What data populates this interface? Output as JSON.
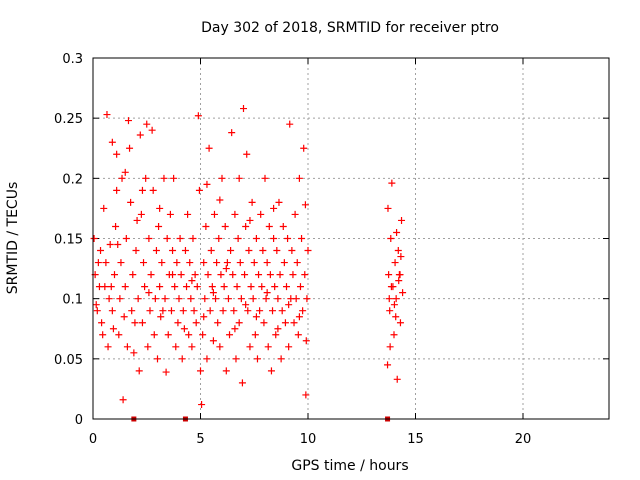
{
  "chart_data": {
    "type": "scatter",
    "title": "Day 302 of 2018, SRMTID for receiver ptro",
    "xlabel": "GPS time / hours",
    "ylabel": "SRMTID / TECUs",
    "xlim": [
      0,
      24
    ],
    "ylim": [
      0,
      0.3
    ],
    "x_ticks": [
      0,
      5,
      10,
      15,
      20
    ],
    "x_tick_labels": [
      "0",
      "5",
      "10",
      "15",
      "20"
    ],
    "y_ticks": [
      0,
      0.05,
      0.1,
      0.15,
      0.2,
      0.25,
      0.3
    ],
    "y_tick_labels": [
      "0",
      "0.05",
      "0.1",
      "0.15",
      "0.2",
      "0.25",
      "0.3"
    ],
    "grid": true,
    "marker": "plus",
    "color": "#ff0000",
    "gap_markers_x": [
      1.9,
      4.3,
      13.7
    ],
    "series": [
      {
        "values": [
          [
            0.05,
            0.15
          ],
          [
            0.1,
            0.12
          ],
          [
            0.2,
            0.09
          ],
          [
            0.3,
            0.11
          ],
          [
            0.35,
            0.14
          ],
          [
            0.4,
            0.08
          ],
          [
            0.5,
            0.175
          ],
          [
            0.55,
            0.11
          ],
          [
            0.6,
            0.13
          ],
          [
            0.7,
            0.06
          ],
          [
            0.75,
            0.1
          ],
          [
            0.8,
            0.145
          ],
          [
            0.9,
            0.09
          ],
          [
            0.95,
            0.075
          ],
          [
            1.0,
            0.12
          ],
          [
            0.65,
            0.253
          ],
          [
            0.9,
            0.23
          ],
          [
            1.1,
            0.22
          ],
          [
            1.05,
            0.16
          ],
          [
            1.1,
            0.19
          ],
          [
            1.2,
            0.07
          ],
          [
            1.25,
            0.1
          ],
          [
            1.3,
            0.13
          ],
          [
            1.35,
            0.2
          ],
          [
            1.4,
            0.016
          ],
          [
            1.45,
            0.085
          ],
          [
            1.5,
            0.11
          ],
          [
            1.55,
            0.15
          ],
          [
            1.6,
            0.06
          ],
          [
            1.65,
            0.248
          ],
          [
            1.7,
            0.225
          ],
          [
            1.75,
            0.18
          ],
          [
            1.8,
            0.09
          ],
          [
            1.85,
            0.12
          ],
          [
            1.9,
            0.055
          ],
          [
            2.0,
            0.14
          ],
          [
            2.1,
            0.1
          ],
          [
            2.15,
            0.04
          ],
          [
            2.2,
            0.236
          ],
          [
            2.25,
            0.17
          ],
          [
            2.3,
            0.08
          ],
          [
            2.35,
            0.13
          ],
          [
            2.4,
            0.11
          ],
          [
            2.45,
            0.2
          ],
          [
            2.5,
            0.245
          ],
          [
            2.55,
            0.06
          ],
          [
            2.6,
            0.15
          ],
          [
            2.65,
            0.09
          ],
          [
            2.7,
            0.12
          ],
          [
            2.75,
            0.24
          ],
          [
            2.8,
            0.19
          ],
          [
            2.85,
            0.07
          ],
          [
            2.9,
            0.1
          ],
          [
            2.95,
            0.14
          ],
          [
            3.0,
            0.05
          ],
          [
            3.05,
            0.16
          ],
          [
            3.1,
            0.11
          ],
          [
            3.15,
            0.085
          ],
          [
            3.2,
            0.13
          ],
          [
            3.3,
            0.2
          ],
          [
            3.35,
            0.1
          ],
          [
            3.4,
            0.039
          ],
          [
            3.45,
            0.15
          ],
          [
            3.5,
            0.07
          ],
          [
            3.55,
            0.12
          ],
          [
            3.6,
            0.17
          ],
          [
            3.65,
            0.09
          ],
          [
            3.7,
            0.14
          ],
          [
            3.75,
            0.2
          ],
          [
            3.8,
            0.11
          ],
          [
            3.85,
            0.06
          ],
          [
            3.9,
            0.13
          ],
          [
            3.95,
            0.08
          ],
          [
            4.0,
            0.1
          ],
          [
            4.05,
            0.15
          ],
          [
            4.1,
            0.12
          ],
          [
            4.15,
            0.05
          ],
          [
            4.2,
            0.09
          ],
          [
            4.3,
            0.14
          ],
          [
            4.35,
            0.11
          ],
          [
            4.4,
            0.17
          ],
          [
            4.45,
            0.07
          ],
          [
            4.5,
            0.13
          ],
          [
            4.55,
            0.1
          ],
          [
            4.6,
            0.06
          ],
          [
            4.65,
            0.15
          ],
          [
            4.7,
            0.09
          ],
          [
            4.75,
            0.12
          ],
          [
            4.8,
            0.08
          ],
          [
            4.85,
            0.11
          ],
          [
            4.9,
            0.252
          ],
          [
            4.95,
            0.19
          ],
          [
            5.0,
            0.04
          ],
          [
            5.05,
            0.012
          ],
          [
            5.1,
            0.07
          ],
          [
            5.15,
            0.13
          ],
          [
            5.2,
            0.1
          ],
          [
            5.25,
            0.16
          ],
          [
            5.3,
            0.05
          ],
          [
            5.35,
            0.12
          ],
          [
            5.4,
            0.225
          ],
          [
            5.45,
            0.09
          ],
          [
            5.5,
            0.14
          ],
          [
            5.55,
            0.11
          ],
          [
            5.6,
            0.065
          ],
          [
            5.65,
            0.17
          ],
          [
            5.7,
            0.1
          ],
          [
            5.75,
            0.13
          ],
          [
            5.8,
            0.08
          ],
          [
            5.85,
            0.15
          ],
          [
            5.9,
            0.06
          ],
          [
            5.95,
            0.12
          ],
          [
            6.0,
            0.2
          ],
          [
            6.05,
            0.09
          ],
          [
            6.1,
            0.11
          ],
          [
            6.15,
            0.16
          ],
          [
            6.2,
            0.04
          ],
          [
            6.25,
            0.13
          ],
          [
            6.3,
            0.1
          ],
          [
            6.35,
            0.07
          ],
          [
            6.4,
            0.14
          ],
          [
            6.45,
            0.238
          ],
          [
            6.5,
            0.12
          ],
          [
            6.55,
            0.09
          ],
          [
            6.6,
            0.17
          ],
          [
            6.65,
            0.05
          ],
          [
            6.7,
            0.11
          ],
          [
            6.75,
            0.15
          ],
          [
            6.8,
            0.08
          ],
          [
            6.85,
            0.13
          ],
          [
            6.9,
            0.1
          ],
          [
            6.95,
            0.03
          ],
          [
            7.0,
            0.258
          ],
          [
            7.05,
            0.12
          ],
          [
            7.1,
            0.16
          ],
          [
            7.15,
            0.22
          ],
          [
            7.2,
            0.09
          ],
          [
            7.25,
            0.14
          ],
          [
            7.3,
            0.06
          ],
          [
            7.35,
            0.11
          ],
          [
            7.4,
            0.18
          ],
          [
            7.45,
            0.1
          ],
          [
            7.5,
            0.13
          ],
          [
            7.55,
            0.07
          ],
          [
            7.6,
            0.15
          ],
          [
            7.65,
            0.05
          ],
          [
            7.7,
            0.12
          ],
          [
            7.75,
            0.09
          ],
          [
            7.8,
            0.17
          ],
          [
            7.85,
            0.11
          ],
          [
            7.9,
            0.14
          ],
          [
            7.95,
            0.08
          ],
          [
            8.0,
            0.2
          ],
          [
            8.05,
            0.1
          ],
          [
            8.1,
            0.13
          ],
          [
            8.15,
            0.06
          ],
          [
            8.2,
            0.16
          ],
          [
            8.25,
            0.12
          ],
          [
            8.3,
            0.04
          ],
          [
            8.35,
            0.09
          ],
          [
            8.4,
            0.15
          ],
          [
            8.45,
            0.11
          ],
          [
            8.5,
            0.07
          ],
          [
            8.55,
            0.14
          ],
          [
            8.6,
            0.1
          ],
          [
            8.65,
            0.18
          ],
          [
            8.7,
            0.12
          ],
          [
            8.75,
            0.05
          ],
          [
            8.8,
            0.09
          ],
          [
            8.85,
            0.16
          ],
          [
            8.9,
            0.13
          ],
          [
            8.95,
            0.08
          ],
          [
            9.0,
            0.11
          ],
          [
            9.05,
            0.15
          ],
          [
            9.1,
            0.06
          ],
          [
            9.15,
            0.245
          ],
          [
            9.2,
            0.1
          ],
          [
            9.25,
            0.14
          ],
          [
            9.3,
            0.12
          ],
          [
            9.35,
            0.08
          ],
          [
            9.4,
            0.17
          ],
          [
            9.45,
            0.1
          ],
          [
            9.5,
            0.13
          ],
          [
            9.55,
            0.07
          ],
          [
            9.6,
            0.2
          ],
          [
            9.65,
            0.11
          ],
          [
            9.7,
            0.15
          ],
          [
            9.75,
            0.09
          ],
          [
            9.8,
            0.225
          ],
          [
            9.85,
            0.12
          ],
          [
            9.9,
            0.02
          ],
          [
            9.95,
            0.1
          ],
          [
            10.0,
            0.14
          ],
          [
            9.92,
            0.065
          ],
          [
            9.88,
            0.178
          ],
          [
            0.15,
            0.095
          ],
          [
            0.25,
            0.13
          ],
          [
            0.45,
            0.07
          ],
          [
            0.85,
            0.11
          ],
          [
            1.15,
            0.145
          ],
          [
            1.95,
            0.08
          ],
          [
            2.05,
            0.165
          ],
          [
            2.6,
            0.105
          ],
          [
            3.25,
            0.09
          ],
          [
            3.7,
            0.12
          ],
          [
            4.25,
            0.075
          ],
          [
            4.6,
            0.115
          ],
          [
            5.15,
            0.085
          ],
          [
            5.6,
            0.105
          ],
          [
            6.2,
            0.125
          ],
          [
            6.6,
            0.075
          ],
          [
            7.1,
            0.095
          ],
          [
            7.6,
            0.085
          ],
          [
            8.1,
            0.105
          ],
          [
            8.6,
            0.075
          ],
          [
            9.1,
            0.095
          ],
          [
            9.6,
            0.085
          ],
          [
            2.3,
            0.19
          ],
          [
            3.1,
            0.175
          ],
          [
            5.9,
            0.182
          ],
          [
            7.3,
            0.165
          ],
          [
            8.4,
            0.175
          ],
          [
            1.5,
            0.205
          ],
          [
            5.3,
            0.195
          ],
          [
            6.8,
            0.2
          ],
          [
            13.7,
            0.045
          ],
          [
            13.75,
            0.12
          ],
          [
            13.8,
            0.09
          ],
          [
            13.85,
            0.15
          ],
          [
            13.9,
            0.196
          ],
          [
            13.95,
            0.11
          ],
          [
            14.0,
            0.07
          ],
          [
            14.05,
            0.13
          ],
          [
            14.1,
            0.1
          ],
          [
            14.15,
            0.033
          ],
          [
            14.2,
            0.14
          ],
          [
            14.25,
            0.12
          ],
          [
            14.3,
            0.08
          ],
          [
            14.35,
            0.165
          ],
          [
            14.4,
            0.105
          ],
          [
            13.72,
            0.175
          ],
          [
            13.82,
            0.06
          ],
          [
            13.88,
            0.11
          ],
          [
            14.02,
            0.095
          ],
          [
            14.12,
            0.155
          ],
          [
            14.22,
            0.115
          ],
          [
            14.32,
            0.135
          ],
          [
            13.78,
            0.1
          ],
          [
            14.08,
            0.085
          ],
          [
            14.28,
            0.12
          ]
        ]
      }
    ]
  }
}
